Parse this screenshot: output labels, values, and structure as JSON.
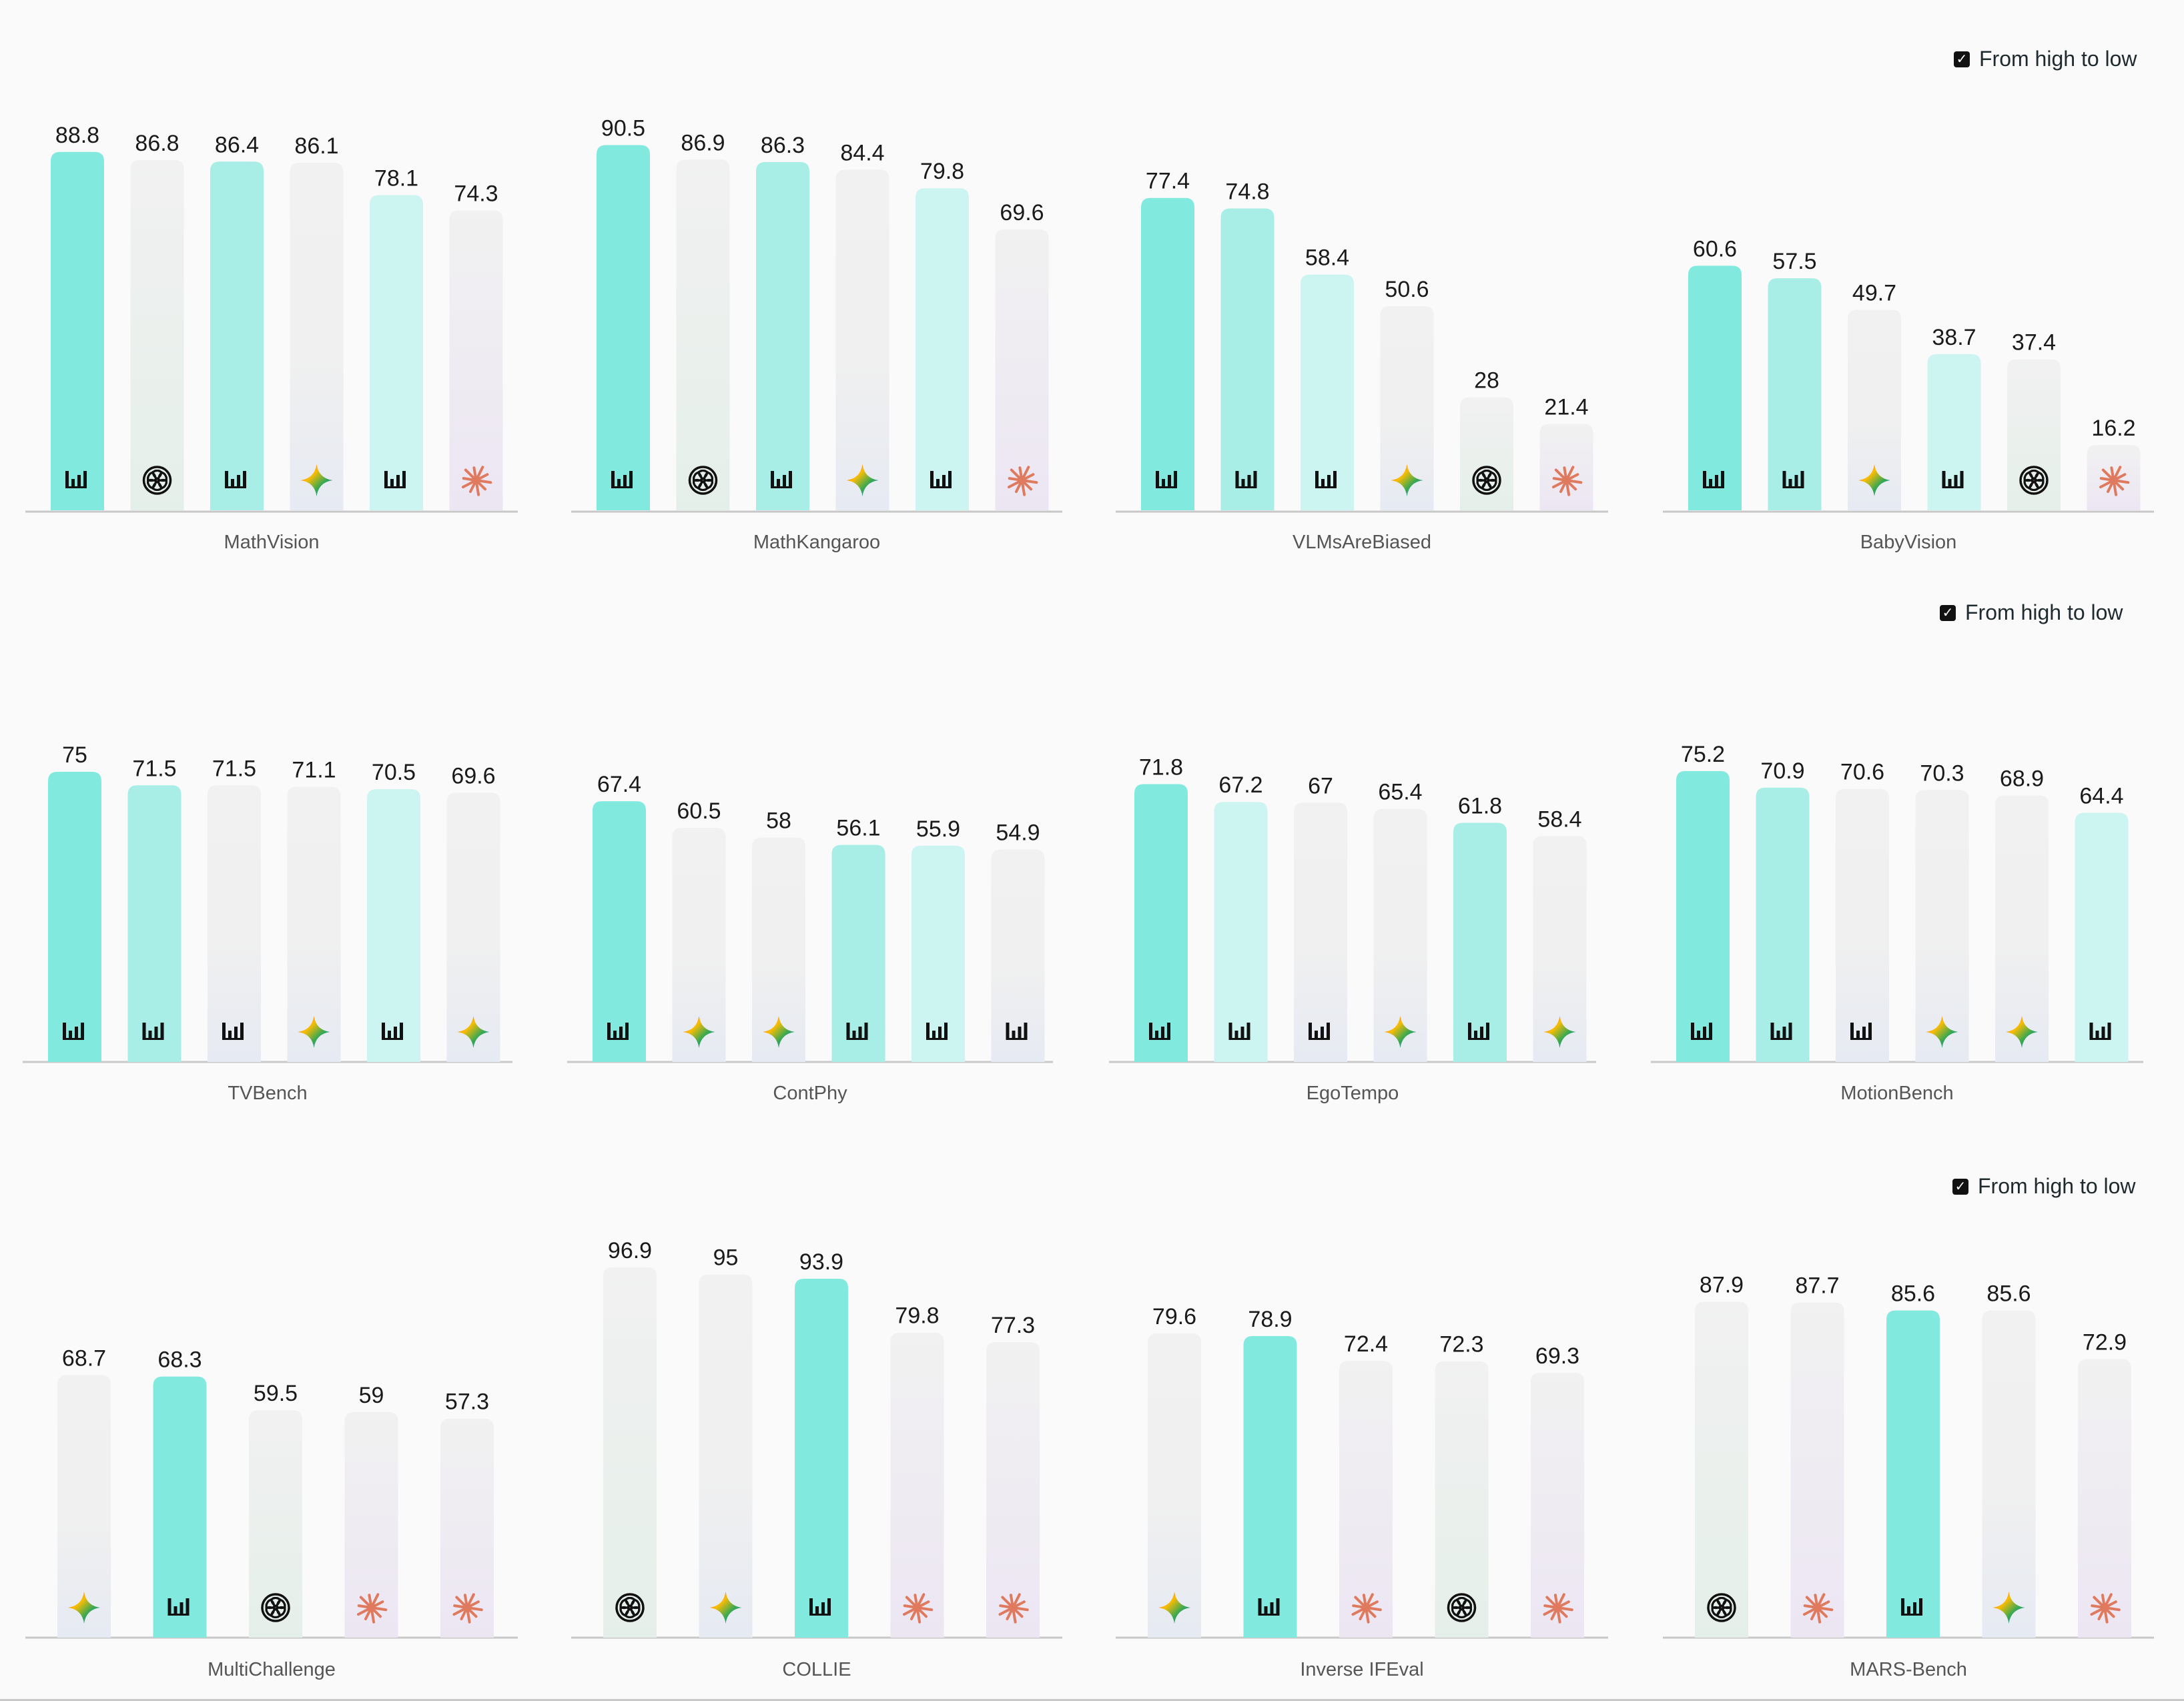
{
  "sort_label": "From high to low",
  "icon_names": {
    "bars": "bar-logo-icon",
    "openai": "openai-logo-icon",
    "gemini": "gemini-sparkle-icon",
    "anthropic": "anthropic-asterisk-icon"
  },
  "colors": {
    "teal_strong": "#82E9DF",
    "teal_mid": "#A8EEE6",
    "teal_light": "#CCF4F0",
    "grey_bar": "#F1F1F1",
    "axis": "#C8C8C8",
    "label": "#555555",
    "value": "#1A1A1A",
    "anthropic": "#E07A5F"
  },
  "chart_data": [
    {
      "type": "bar",
      "title": "MathVision",
      "values": [
        88.8,
        86.8,
        86.4,
        86.1,
        78.1,
        74.3
      ],
      "icons": [
        "bars",
        "openai",
        "bars",
        "gemini",
        "bars",
        "anthropic"
      ],
      "fills": [
        "teal_strong",
        "grey",
        "teal_mid",
        "grey",
        "teal_light",
        "grey"
      ],
      "ylim": [
        0,
        100
      ]
    },
    {
      "type": "bar",
      "title": "MathKangaroo",
      "values": [
        90.5,
        86.9,
        86.3,
        84.4,
        79.8,
        69.6
      ],
      "icons": [
        "bars",
        "openai",
        "bars",
        "gemini",
        "bars",
        "anthropic"
      ],
      "fills": [
        "teal_strong",
        "grey",
        "teal_mid",
        "grey",
        "teal_light",
        "grey"
      ],
      "ylim": [
        0,
        100
      ]
    },
    {
      "type": "bar",
      "title": "VLMsAreBiased",
      "values": [
        77.4,
        74.8,
        58.4,
        50.6,
        28,
        21.4
      ],
      "icons": [
        "bars",
        "bars",
        "bars",
        "gemini",
        "openai",
        "anthropic"
      ],
      "fills": [
        "teal_strong",
        "teal_mid",
        "teal_light",
        "grey",
        "grey",
        "grey"
      ],
      "ylim": [
        0,
        100
      ]
    },
    {
      "type": "bar",
      "title": "BabyVision",
      "values": [
        60.6,
        57.5,
        49.7,
        38.7,
        37.4,
        16.2
      ],
      "icons": [
        "bars",
        "bars",
        "gemini",
        "bars",
        "openai",
        "anthropic"
      ],
      "fills": [
        "teal_strong",
        "teal_mid",
        "grey",
        "teal_light",
        "grey",
        "grey"
      ],
      "ylim": [
        0,
        100
      ]
    },
    {
      "type": "bar",
      "title": "TVBench",
      "values": [
        75,
        71.5,
        71.5,
        71.1,
        70.5,
        69.6
      ],
      "icons": [
        "bars",
        "bars",
        "bars",
        "gemini",
        "bars",
        "gemini"
      ],
      "fills": [
        "teal_strong",
        "teal_mid",
        "grey",
        "grey",
        "teal_light",
        "grey"
      ],
      "ylim": [
        0,
        100
      ]
    },
    {
      "type": "bar",
      "title": "ContPhy",
      "values": [
        67.4,
        60.5,
        58,
        56.1,
        55.9,
        54.9
      ],
      "icons": [
        "bars",
        "gemini",
        "gemini",
        "bars",
        "bars",
        "bars"
      ],
      "fills": [
        "teal_strong",
        "grey",
        "grey",
        "teal_mid",
        "teal_light",
        "grey"
      ],
      "ylim": [
        0,
        100
      ]
    },
    {
      "type": "bar",
      "title": "EgoTempo",
      "values": [
        71.8,
        67.2,
        67,
        65.4,
        61.8,
        58.4
      ],
      "icons": [
        "bars",
        "bars",
        "bars",
        "gemini",
        "bars",
        "gemini"
      ],
      "fills": [
        "teal_strong",
        "teal_light",
        "grey",
        "grey",
        "teal_mid",
        "grey"
      ],
      "ylim": [
        0,
        100
      ]
    },
    {
      "type": "bar",
      "title": "MotionBench",
      "values": [
        75.2,
        70.9,
        70.6,
        70.3,
        68.9,
        64.4
      ],
      "icons": [
        "bars",
        "bars",
        "bars",
        "gemini",
        "gemini",
        "bars"
      ],
      "fills": [
        "teal_strong",
        "teal_mid",
        "grey",
        "grey",
        "grey",
        "teal_light"
      ],
      "ylim": [
        0,
        100
      ]
    },
    {
      "type": "bar",
      "title": "MultiChallenge",
      "values": [
        68.7,
        68.3,
        59.5,
        59,
        57.3
      ],
      "icons": [
        "gemini",
        "bars",
        "openai",
        "anthropic",
        "anthropic"
      ],
      "fills": [
        "grey",
        "teal_strong",
        "grey",
        "grey",
        "grey"
      ],
      "ylim": [
        0,
        100
      ]
    },
    {
      "type": "bar",
      "title": "COLLIE",
      "values": [
        96.9,
        95,
        93.9,
        79.8,
        77.3
      ],
      "icons": [
        "openai",
        "gemini",
        "bars",
        "anthropic",
        "anthropic"
      ],
      "fills": [
        "grey",
        "grey",
        "teal_strong",
        "grey",
        "grey"
      ],
      "ylim": [
        0,
        100
      ]
    },
    {
      "type": "bar",
      "title": "Inverse IFEval",
      "values": [
        79.6,
        78.9,
        72.4,
        72.3,
        69.3
      ],
      "icons": [
        "gemini",
        "bars",
        "anthropic",
        "openai",
        "anthropic"
      ],
      "fills": [
        "grey",
        "teal_strong",
        "grey",
        "grey",
        "grey"
      ],
      "ylim": [
        0,
        100
      ]
    },
    {
      "type": "bar",
      "title": "MARS-Bench",
      "values": [
        87.9,
        87.7,
        85.6,
        85.6,
        72.9
      ],
      "icons": [
        "openai",
        "anthropic",
        "bars",
        "gemini",
        "anthropic"
      ],
      "fills": [
        "grey",
        "grey",
        "teal_strong",
        "grey",
        "grey"
      ],
      "ylim": [
        0,
        100
      ]
    }
  ]
}
